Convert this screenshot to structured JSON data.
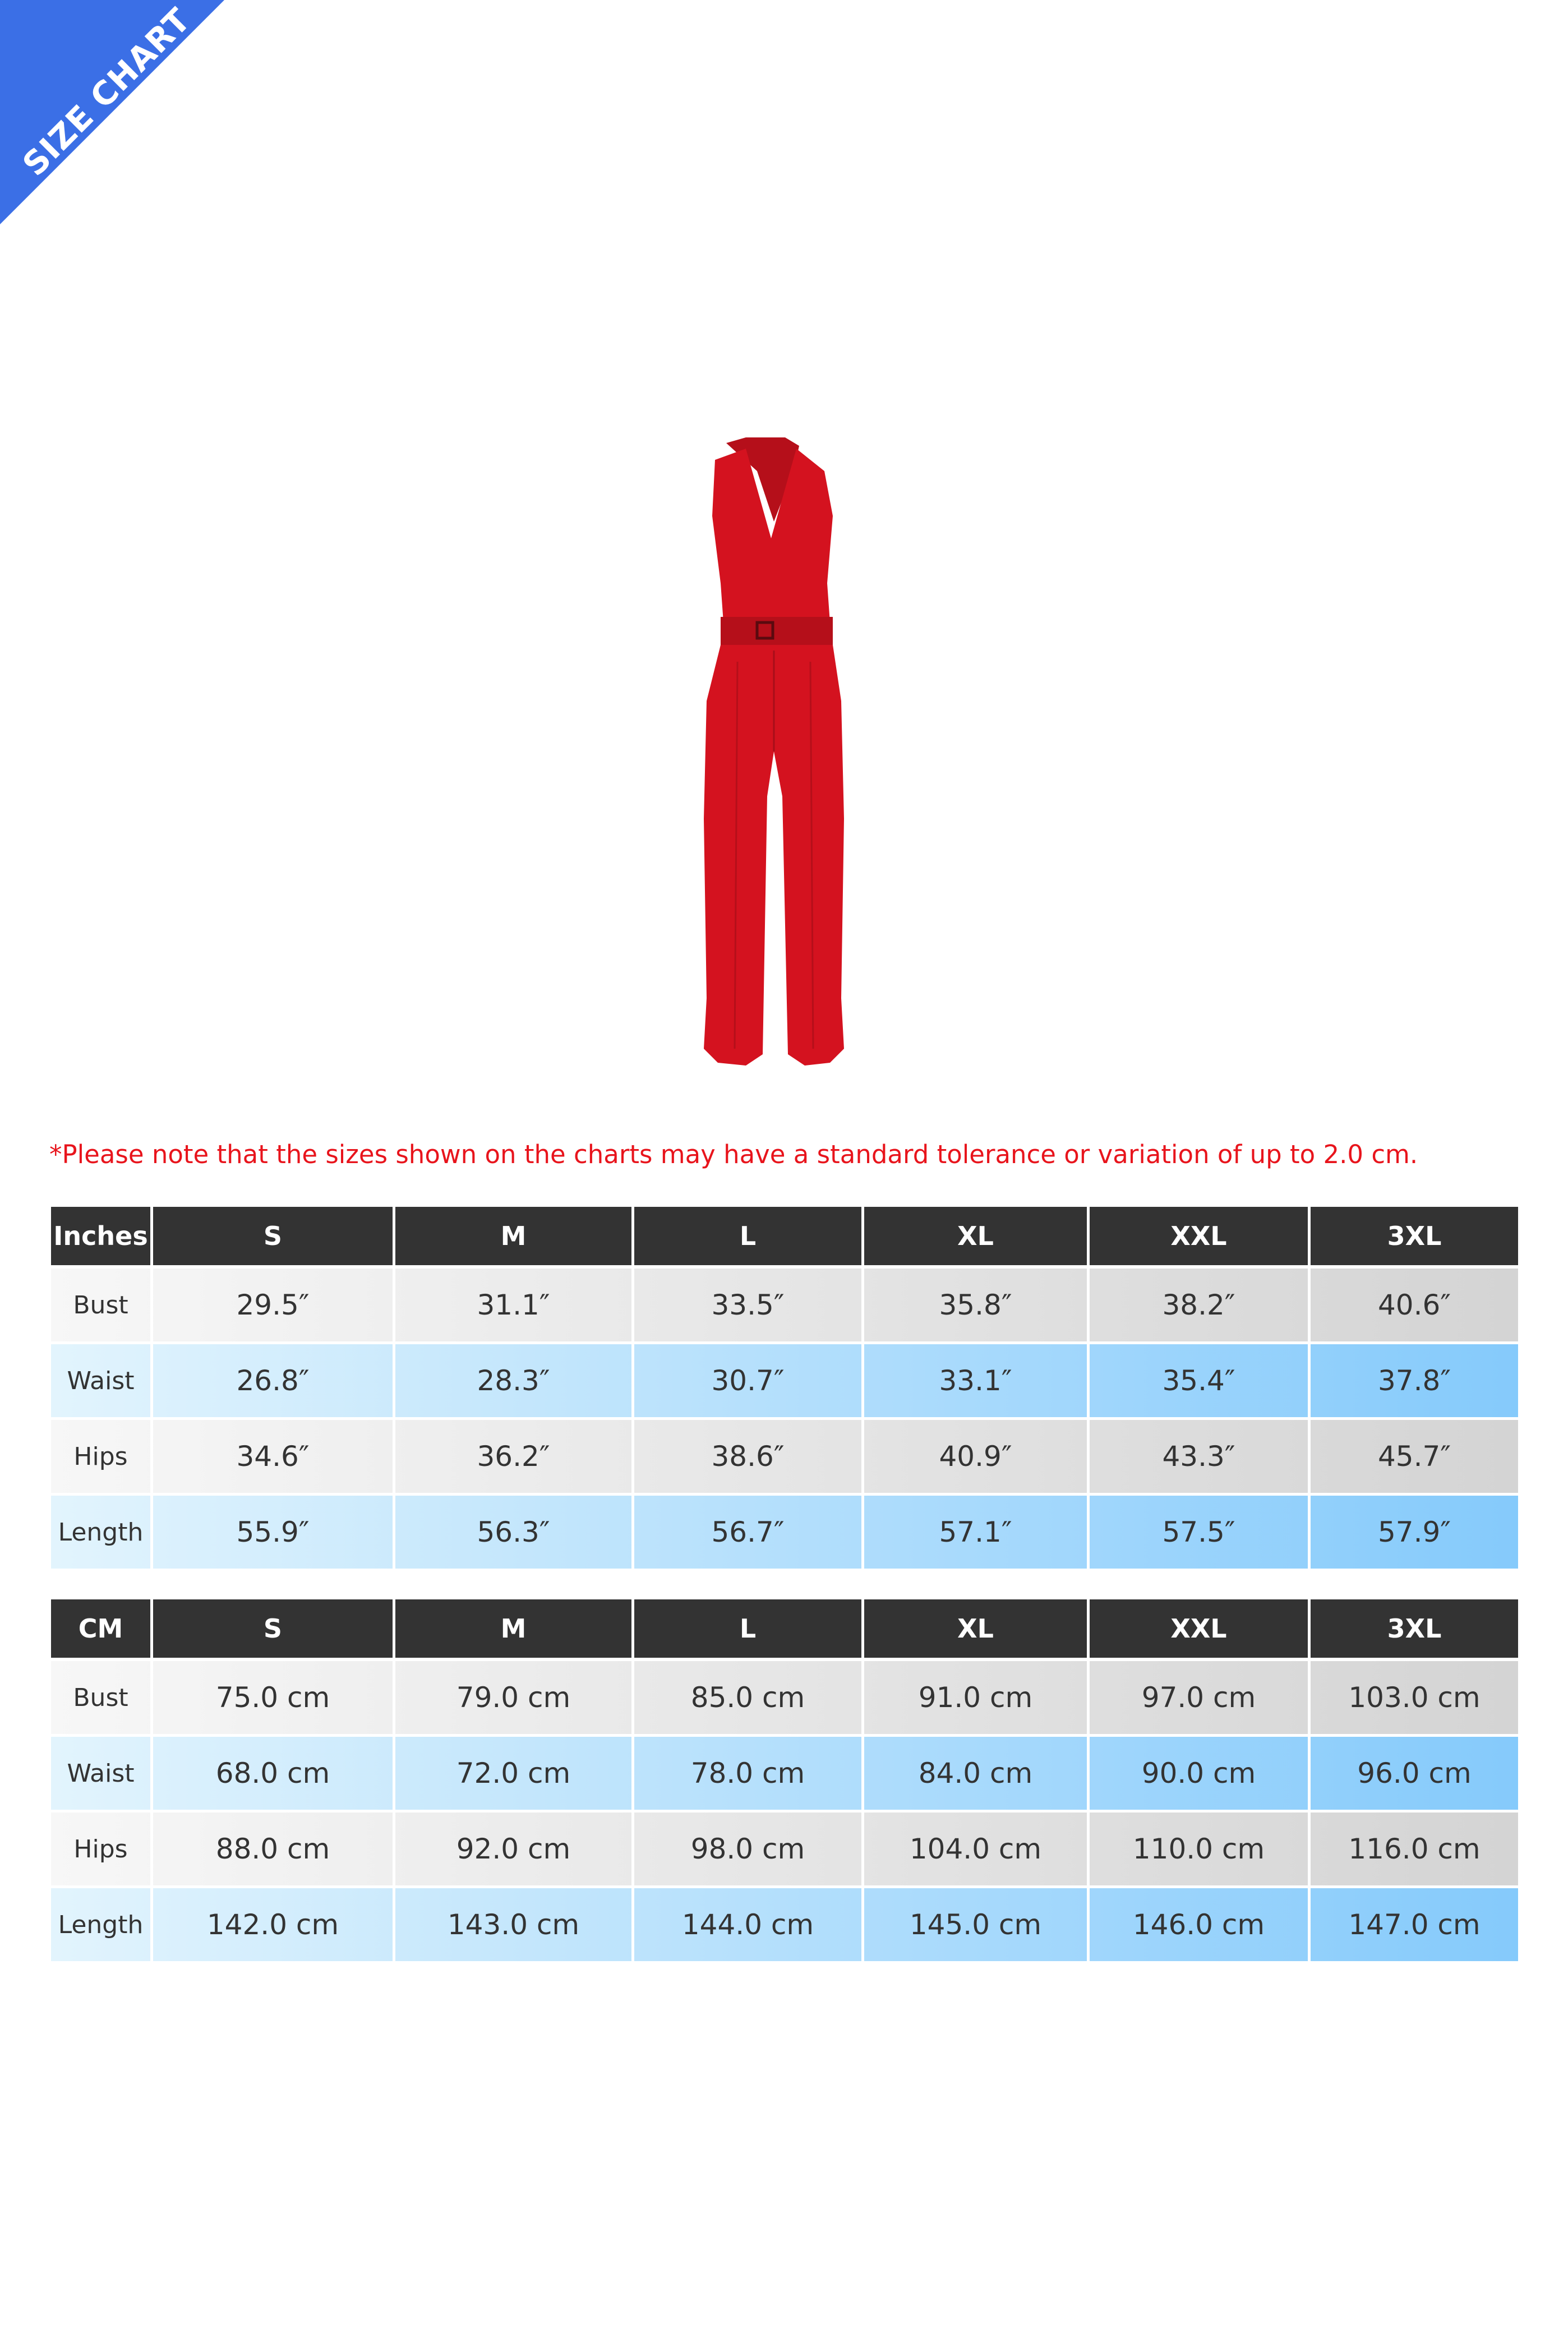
{
  "banner": {
    "label": "SIZE CHART",
    "color": "#3b6fe6"
  },
  "product": {
    "image": "red-halter-jumpsuit",
    "color": "#d4121f"
  },
  "note": "*Please note that the sizes shown on the charts may have a standard tolerance or variation of up to 2.0 cm.",
  "inches_table": {
    "headers": [
      "Inches",
      "S",
      "M",
      "L",
      "XL",
      "XXL",
      "3XL"
    ],
    "rows": [
      [
        "Bust",
        "29.5″",
        "31.1″",
        "33.5″",
        "35.8″",
        "38.2″",
        "40.6″"
      ],
      [
        "Waist",
        "26.8″",
        "28.3″",
        "30.7″",
        "33.1″",
        "35.4″",
        "37.8″"
      ],
      [
        "Hips",
        "34.6″",
        "36.2″",
        "38.6″",
        "40.9″",
        "43.3″",
        "45.7″"
      ],
      [
        "Length",
        "55.9″",
        "56.3″",
        "56.7″",
        "57.1″",
        "57.5″",
        "57.9″"
      ]
    ]
  },
  "cm_table": {
    "headers": [
      "CM",
      "S",
      "M",
      "L",
      "XL",
      "XXL",
      "3XL"
    ],
    "rows": [
      [
        "Bust",
        "75.0 cm",
        "79.0 cm",
        "85.0 cm",
        "91.0 cm",
        "97.0 cm",
        "103.0 cm"
      ],
      [
        "Waist",
        "68.0 cm",
        "72.0 cm",
        "78.0 cm",
        "84.0 cm",
        "90.0 cm",
        "96.0 cm"
      ],
      [
        "Hips",
        "88.0 cm",
        "92.0 cm",
        "98.0 cm",
        "104.0 cm",
        "110.0 cm",
        "116.0 cm"
      ],
      [
        "Length",
        "142.0 cm",
        "143.0 cm",
        "144.0 cm",
        "145.0 cm",
        "146.0 cm",
        "147.0 cm"
      ]
    ]
  }
}
